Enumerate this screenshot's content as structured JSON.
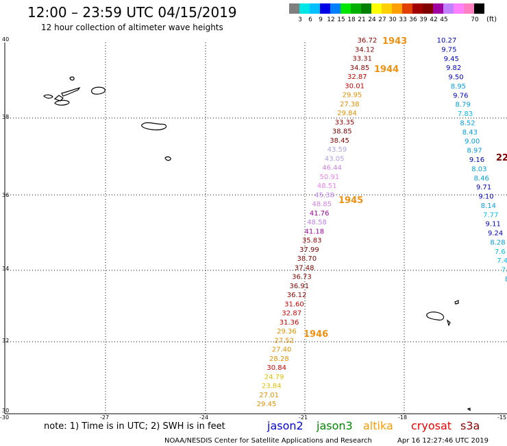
{
  "title": "12:00 – 23:59 UTC 04/15/2019",
  "subtitle": "12 hour collection of altimeter wave heights",
  "legend": {
    "unit": "(ft)",
    "colors": [
      "#7f7f7f",
      "#00e6e6",
      "#00c0ff",
      "#0000e6",
      "#0080ff",
      "#00e600",
      "#00b000",
      "#008000",
      "#ffff00",
      "#ffd000",
      "#ffa000",
      "#e04000",
      "#a00000",
      "#800000",
      "#a000a0",
      "#c080ff",
      "#ff80ff",
      "#ff80c0",
      "#000000"
    ],
    "ticks": [
      "3",
      "6",
      "9",
      "12",
      "15",
      "18",
      "21",
      "24",
      "27",
      "30",
      "33",
      "36",
      "39",
      "42",
      "45",
      "70"
    ]
  },
  "axes": {
    "lon_labels": [
      "-30",
      "-27",
      "-24",
      "-21",
      "-18",
      "-15"
    ],
    "lat_labels": [
      "40",
      "38",
      "36",
      "34",
      "32",
      "30"
    ]
  },
  "times": [
    {
      "text": "1943"
    },
    {
      "text": "1944"
    },
    {
      "text": "1945"
    },
    {
      "text": "1946"
    }
  ],
  "track_main": [
    {
      "v": "36.72",
      "c": "#8b0000"
    },
    {
      "v": "34.12",
      "c": "#8b0000"
    },
    {
      "v": "33.31",
      "c": "#8b0000"
    },
    {
      "v": "34.85",
      "c": "#8b0000"
    },
    {
      "v": "32.87",
      "c": "#cc0000"
    },
    {
      "v": "30.01",
      "c": "#cc0000"
    },
    {
      "v": "29.95",
      "c": "#e09000"
    },
    {
      "v": "27.38",
      "c": "#e09000"
    },
    {
      "v": "29.84",
      "c": "#e09000"
    },
    {
      "v": "33.35",
      "c": "#8b0000"
    },
    {
      "v": "38.85",
      "c": "#800000"
    },
    {
      "v": "38.45",
      "c": "#800000"
    },
    {
      "v": "43.59",
      "c": "#b0a0e0"
    },
    {
      "v": "43.05",
      "c": "#b0a0e0"
    },
    {
      "v": "46.44",
      "c": "#d080e0"
    },
    {
      "v": "50.91",
      "c": "#ee82ee"
    },
    {
      "v": "48.51",
      "c": "#ee82ee"
    },
    {
      "v": "45.38",
      "c": "#c080f0"
    },
    {
      "v": "48.85",
      "c": "#d080e0"
    },
    {
      "v": "41.76",
      "c": "#a000a0"
    },
    {
      "v": "48.58",
      "c": "#c080f0"
    },
    {
      "v": "41.18",
      "c": "#a000a0"
    },
    {
      "v": "35.83",
      "c": "#8b0000"
    },
    {
      "v": "37.99",
      "c": "#800000"
    },
    {
      "v": "38.70",
      "c": "#800000"
    },
    {
      "v": "37.48",
      "c": "#800000"
    },
    {
      "v": "36.73",
      "c": "#800000"
    },
    {
      "v": "36.91",
      "c": "#800000"
    },
    {
      "v": "36.12",
      "c": "#8b0000"
    },
    {
      "v": "31.60",
      "c": "#cc0000"
    },
    {
      "v": "32.87",
      "c": "#cc0000"
    },
    {
      "v": "31.36",
      "c": "#cc0000"
    },
    {
      "v": "29.36",
      "c": "#e09000"
    },
    {
      "v": "27.52",
      "c": "#e09000"
    },
    {
      "v": "27.40",
      "c": "#e09000"
    },
    {
      "v": "28.28",
      "c": "#e09000"
    },
    {
      "v": "30.84",
      "c": "#cc0000"
    },
    {
      "v": "24.79",
      "c": "#e0c000"
    },
    {
      "v": "23.84",
      "c": "#e0c000"
    },
    {
      "v": "27.01",
      "c": "#e09000"
    },
    {
      "v": "29.45",
      "c": "#e09000"
    }
  ],
  "track_right": [
    {
      "v": "10.27",
      "c": "#0000c0"
    },
    {
      "v": "9.75",
      "c": "#0000c0"
    },
    {
      "v": "9.45",
      "c": "#0000c0"
    },
    {
      "v": "9.82",
      "c": "#0000c0"
    },
    {
      "v": "9.50",
      "c": "#0000c0"
    },
    {
      "v": "8.95",
      "c": "#00a0e0"
    },
    {
      "v": "9.76",
      "c": "#0000c0"
    },
    {
      "v": "8.79",
      "c": "#00a0e0"
    },
    {
      "v": "7.83",
      "c": "#00c0e6"
    },
    {
      "v": "8.52",
      "c": "#00a0e0"
    },
    {
      "v": "8.43",
      "c": "#00a0e0"
    },
    {
      "v": "9.00",
      "c": "#00a0e0"
    },
    {
      "v": "8.97",
      "c": "#00a0e0"
    },
    {
      "v": "9.16",
      "c": "#0000c0"
    },
    {
      "v": "8.03",
      "c": "#00a0e0"
    },
    {
      "v": "8.46",
      "c": "#00a0e0"
    },
    {
      "v": "9.71",
      "c": "#0000c0"
    },
    {
      "v": "9.10",
      "c": "#0000c0"
    },
    {
      "v": "8.14",
      "c": "#00a0e0"
    },
    {
      "v": "7.77",
      "c": "#00c0e6"
    },
    {
      "v": "9.11",
      "c": "#0000c0"
    },
    {
      "v": "9.24",
      "c": "#0000c0"
    },
    {
      "v": "8.28",
      "c": "#00a0e0"
    },
    {
      "v": "7.6",
      "c": "#00c0e6"
    },
    {
      "v": "7.4",
      "c": "#00c0e6"
    },
    {
      "v": "7.",
      "c": "#00c0e6"
    },
    {
      "v": "8",
      "c": "#00a0e0"
    }
  ],
  "edge_value": {
    "v": "22",
    "c": "#800000"
  },
  "satellites": [
    {
      "name": "jason2",
      "color": "#0000e0"
    },
    {
      "name": "jason3",
      "color": "#008800"
    },
    {
      "name": "altika",
      "color": "#ff9900"
    },
    {
      "name": "cryosat",
      "color": "#ee0000"
    },
    {
      "name": "s3a",
      "color": "#8b0000"
    }
  ],
  "note": "note: 1) Time is in UTC; 2) SWH is in feet",
  "footer": "NOAA/NESDIS Center for Satellite Applications and Research",
  "timestamp": "Apr 16 12:27:46 UTC 2019"
}
